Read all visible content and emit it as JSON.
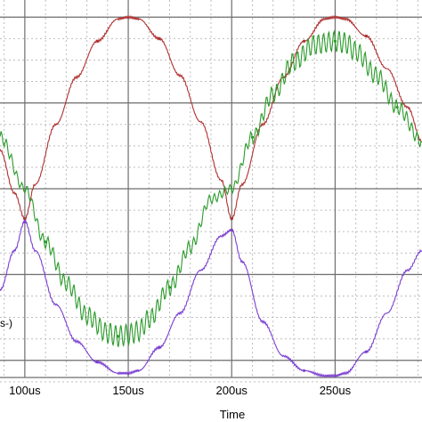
{
  "chart_data": {
    "type": "line",
    "xlabel": "Time",
    "x_unit": "us",
    "x_tick_labels": [
      "100us",
      "150us",
      "200us",
      "250us"
    ],
    "x_ticks": [
      100,
      150,
      200,
      250
    ],
    "xlim": [
      88,
      292
    ],
    "ylim": [
      -2.2,
      2.2
    ],
    "grid": true,
    "side_text": "s-)",
    "series": [
      {
        "color": "#b03030",
        "x": [
          88,
          95,
          100,
          105,
          115,
          125,
          135,
          145,
          150,
          155,
          165,
          175,
          185,
          195,
          200,
          205,
          215,
          225,
          235,
          245,
          250,
          255,
          265,
          275,
          285,
          292
        ],
        "y": [
          0.45,
          -0.05,
          -0.35,
          0.05,
          0.75,
          1.3,
          1.72,
          1.98,
          2.0,
          1.98,
          1.75,
          1.32,
          0.78,
          0.1,
          -0.35,
          0.05,
          0.75,
          1.3,
          1.72,
          1.98,
          2.0,
          1.98,
          1.78,
          1.4,
          0.95,
          0.55
        ]
      },
      {
        "color": "#2a9a2a",
        "ripple": true,
        "x": [
          88,
          100,
          110,
          120,
          130,
          140,
          145,
          150,
          155,
          160,
          170,
          180,
          190,
          200,
          210,
          220,
          230,
          240,
          250,
          255,
          260,
          270,
          280,
          292
        ],
        "y": [
          0.6,
          0.0,
          -0.62,
          -1.1,
          -1.48,
          -1.68,
          -1.72,
          -1.7,
          -1.66,
          -1.52,
          -1.15,
          -0.68,
          -0.12,
          0.0,
          0.6,
          1.1,
          1.48,
          1.68,
          1.72,
          1.7,
          1.6,
          1.32,
          0.95,
          0.55
        ]
      },
      {
        "color": "#7a3fd0",
        "x": [
          88,
          95,
          100,
          105,
          115,
          125,
          135,
          145,
          150,
          155,
          165,
          175,
          185,
          195,
          200,
          205,
          215,
          225,
          235,
          245,
          250,
          255,
          265,
          275,
          285,
          292
        ],
        "y": [
          -1.18,
          -0.72,
          -0.38,
          -0.72,
          -1.35,
          -1.78,
          -2.02,
          -2.15,
          -2.15,
          -2.12,
          -1.85,
          -1.45,
          -0.95,
          -0.55,
          -0.48,
          -0.85,
          -1.55,
          -1.95,
          -2.12,
          -2.18,
          -2.18,
          -2.15,
          -1.9,
          -1.45,
          -0.95,
          -0.72
        ]
      }
    ]
  }
}
